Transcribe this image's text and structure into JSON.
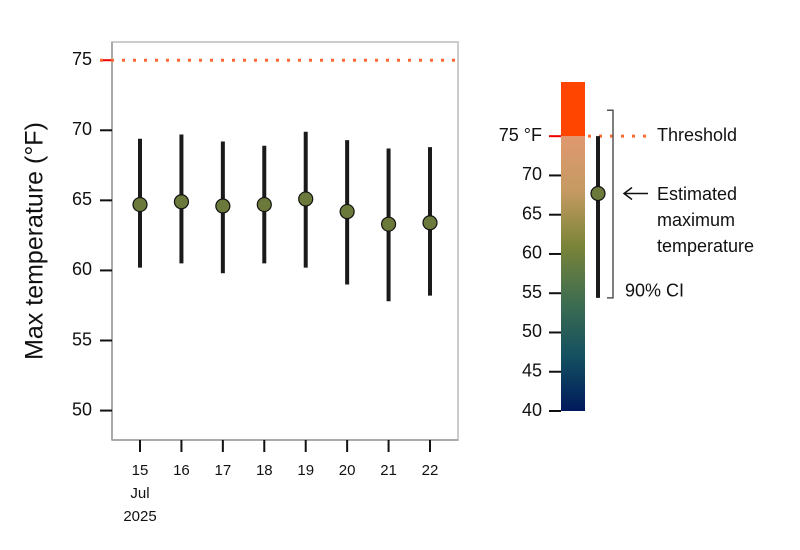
{
  "chart_data": {
    "type": "errorbar",
    "y_label": "Max temperature (°F)",
    "categories": [
      "15",
      "16",
      "17",
      "18",
      "19",
      "20",
      "21",
      "22"
    ],
    "first_category_sublabels": [
      "Jul",
      "2025"
    ],
    "series": [
      {
        "values": [
          64.7,
          64.9,
          64.6,
          64.7,
          65.1,
          64.2,
          63.3,
          63.4
        ],
        "lower": [
          60.2,
          60.5,
          59.8,
          60.5,
          60.2,
          59.0,
          57.8,
          58.2
        ],
        "upper": [
          69.4,
          69.7,
          69.2,
          68.9,
          69.9,
          69.3,
          68.7,
          68.8
        ],
        "color": "#1a1a1a",
        "marker_color": "#6b7a3a"
      }
    ],
    "threshold": 75,
    "threshold_color": "#ff6a33",
    "above_color": "#ff4500",
    "threshold_label_color": "#ee0000",
    "ylim": [
      47.9,
      76.3
    ],
    "yticks": [
      50,
      55,
      60,
      65,
      70,
      75
    ],
    "legend": {
      "ylim": [
        40,
        81.9
      ],
      "yticks": [
        40,
        45,
        50,
        55,
        60,
        65,
        70,
        {
          "value": 75,
          "label": "75 °F"
        }
      ],
      "colors": [
        "#001a5c",
        "#145060",
        "#3f6e50",
        "#7a8438",
        "#c59a62",
        "#e09870"
      ],
      "threshold_label": "Threshold",
      "point_label": [
        "Estimated",
        "maximum",
        "temperature"
      ],
      "ci_label": "90% CI",
      "value": 67.7,
      "lower": 54.4,
      "upper": 78.3
    }
  }
}
